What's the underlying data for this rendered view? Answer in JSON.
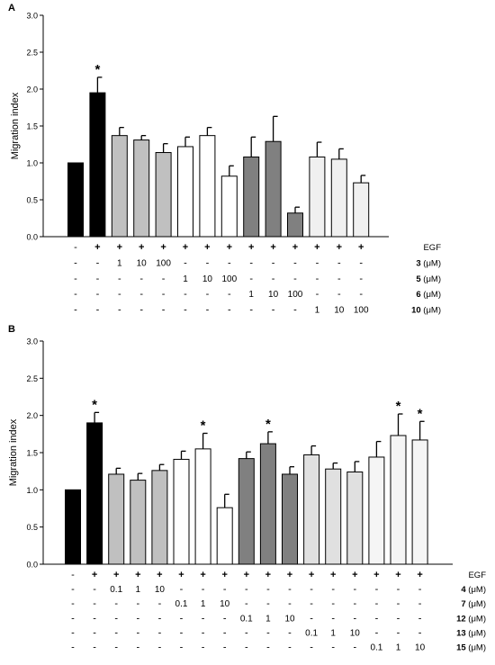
{
  "chart_data": [
    {
      "panel": "A",
      "type": "bar",
      "ylabel": "Migration index",
      "ylim": [
        0,
        3.0
      ],
      "yticks": [
        "0.0",
        "0.5",
        "1.0",
        "1.5",
        "2.0",
        "2.5",
        "3.0"
      ],
      "grid": false,
      "values": [
        1.0,
        1.95,
        1.37,
        1.31,
        1.14,
        1.22,
        1.37,
        0.82,
        1.08,
        1.29,
        0.32,
        1.08,
        1.05,
        0.73
      ],
      "errors": [
        0,
        0.21,
        0.11,
        0.06,
        0.12,
        0.13,
        0.11,
        0.14,
        0.27,
        0.34,
        0.08,
        0.2,
        0.14,
        0.1
      ],
      "fills": [
        "#000000",
        "#000000",
        "#c0c0c0",
        "#c0c0c0",
        "#c0c0c0",
        "#ffffff",
        "#ffffff",
        "#ffffff",
        "#808080",
        "#808080",
        "#808080",
        "#f0f0f0",
        "#f0f0f0",
        "#f0f0f0"
      ],
      "significant": [
        false,
        true,
        false,
        false,
        false,
        false,
        false,
        false,
        false,
        false,
        false,
        false,
        false,
        false
      ],
      "annotation_mark": "*",
      "condition_rows": [
        {
          "compound": "",
          "unit": "EGF",
          "cells": [
            "-",
            "+",
            "+",
            "+",
            "+",
            "+",
            "+",
            "+",
            "+",
            "+",
            "+",
            "+",
            "+",
            "+"
          ]
        },
        {
          "compound": "3",
          "unit": " (μM)",
          "cells": [
            "-",
            "-",
            "1",
            "10",
            "100",
            "-",
            "-",
            "-",
            "-",
            "-",
            "-",
            "-",
            "-",
            "-"
          ]
        },
        {
          "compound": "5",
          "unit": " (μM)",
          "cells": [
            "-",
            "-",
            "-",
            "-",
            "-",
            "1",
            "10",
            "100",
            "-",
            "-",
            "-",
            "-",
            "-",
            "-"
          ]
        },
        {
          "compound": "6",
          "unit": " (μM)",
          "cells": [
            "-",
            "-",
            "-",
            "-",
            "-",
            "-",
            "-",
            "-",
            "1",
            "10",
            "100",
            "-",
            "-",
            "-"
          ]
        },
        {
          "compound": "10",
          "unit": " (μM)",
          "cells": [
            "-",
            "-",
            "-",
            "-",
            "-",
            "-",
            "-",
            "-",
            "-",
            "-",
            "-",
            "1",
            "10",
            "100"
          ]
        }
      ]
    },
    {
      "panel": "B",
      "type": "bar",
      "ylabel": "Migration index",
      "ylim": [
        0,
        3.0
      ],
      "yticks": [
        "0.0",
        "0.5",
        "1.0",
        "1.5",
        "2.0",
        "2.5",
        "3.0"
      ],
      "grid": false,
      "values": [
        1.0,
        1.9,
        1.21,
        1.13,
        1.26,
        1.41,
        1.55,
        0.76,
        1.42,
        1.62,
        1.21,
        1.47,
        1.28,
        1.24,
        1.44,
        1.73,
        1.67
      ],
      "errors": [
        0,
        0.14,
        0.08,
        0.09,
        0.08,
        0.11,
        0.21,
        0.18,
        0.09,
        0.16,
        0.1,
        0.12,
        0.08,
        0.14,
        0.21,
        0.29,
        0.25
      ],
      "fills": [
        "#000000",
        "#000000",
        "#c0c0c0",
        "#c0c0c0",
        "#c0c0c0",
        "#ffffff",
        "#ffffff",
        "#ffffff",
        "#808080",
        "#808080",
        "#808080",
        "#e0e0e0",
        "#e0e0e0",
        "#e0e0e0",
        "#f5f5f5",
        "#f5f5f5",
        "#f5f5f5"
      ],
      "significant": [
        false,
        true,
        false,
        false,
        false,
        false,
        true,
        false,
        false,
        true,
        false,
        false,
        false,
        false,
        false,
        true,
        true
      ],
      "annotation_mark": "*",
      "condition_rows": [
        {
          "compound": "",
          "unit": "EGF",
          "cells": [
            "-",
            "+",
            "+",
            "+",
            "+",
            "+",
            "+",
            "+",
            "+",
            "+",
            "+",
            "+",
            "+",
            "+",
            "+",
            "+",
            "+"
          ]
        },
        {
          "compound": "4",
          "unit": " (μM)",
          "cells": [
            "-",
            "-",
            "0.1",
            "1",
            "10",
            "-",
            "-",
            "-",
            "-",
            "-",
            "-",
            "-",
            "-",
            "-",
            "-",
            "-",
            "-"
          ]
        },
        {
          "compound": "7",
          "unit": " (μM)",
          "cells": [
            "-",
            "-",
            "-",
            "-",
            "-",
            "0.1",
            "1",
            "10",
            "-",
            "-",
            "-",
            "-",
            "-",
            "-",
            "-",
            "-",
            "-"
          ]
        },
        {
          "compound": "12",
          "unit": " (μM)",
          "cells": [
            "-",
            "-",
            "-",
            "-",
            "-",
            "-",
            "-",
            "-",
            "0.1",
            "1",
            "10",
            "-",
            "-",
            "-",
            "-",
            "-",
            "-"
          ]
        },
        {
          "compound": "13",
          "unit": " (μM)",
          "cells": [
            "-",
            "-",
            "-",
            "-",
            "-",
            "-",
            "-",
            "-",
            "-",
            "-",
            "-",
            "0.1",
            "1",
            "10",
            "-",
            "-",
            "-"
          ]
        },
        {
          "compound": "15",
          "unit": " (μM)",
          "cells": [
            "-",
            "-",
            "-",
            "-",
            "-",
            "-",
            "-",
            "-",
            "-",
            "-",
            "-",
            "-",
            "-",
            "-",
            "0.1",
            "1",
            "10"
          ]
        }
      ]
    }
  ]
}
